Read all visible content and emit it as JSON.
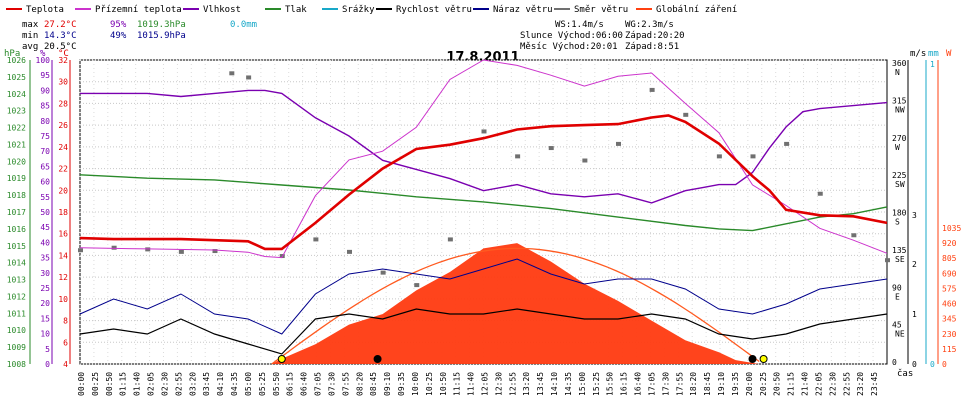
{
  "chart_data": {
    "type": "line",
    "title": "17.8.2011",
    "legend": [
      {
        "label": "Teplota",
        "color": "#e00000"
      },
      {
        "label": "Přízemní teplota",
        "color": "#cc33cc"
      },
      {
        "label": "Vlhkost",
        "color": "#7a00b0"
      },
      {
        "label": "Tlak",
        "color": "#2a8a2a"
      },
      {
        "label": "Srážky",
        "color": "#18a8c8"
      },
      {
        "label": "Rychlost větru",
        "color": "#000000"
      },
      {
        "label": "Náraz větru",
        "color": "#00008b"
      },
      {
        "label": "Směr větru",
        "color": "#707070"
      },
      {
        "label": "Globální záření",
        "color": "#ff4010"
      }
    ],
    "stats": {
      "max_label": "max",
      "max_temp": "27.2°C",
      "max_hum": "95%",
      "max_press": "1019.3hPa",
      "max_rain": "0.0mm",
      "min_label": "min",
      "min_temp": "14.3°C",
      "min_hum": "49%",
      "min_press": "1015.9hPa",
      "avg_label": "avg",
      "avg_temp": "20.5°C"
    },
    "wind_info": {
      "ws": "WS:1.4m/s",
      "wg": "WG:2.3m/s"
    },
    "sun_info": {
      "sun": "Slunce Východ:06:00",
      "sun_set": "Západ:20:20"
    },
    "moon_info": {
      "moon": "Měsíc Východ:20:01",
      "moon_set": "Západ:8:51"
    },
    "axes": {
      "hpa_label": "hPa",
      "pct_label": "%",
      "degc_label": "°C",
      "ms_label": "m/s",
      "mm_label": "mm",
      "w_label": "W",
      "time_label": "čas",
      "hpa_ticks": [
        "1026",
        "1025",
        "1024",
        "1023",
        "1022",
        "1021",
        "1020",
        "1019",
        "1018",
        "1017",
        "1016",
        "1015",
        "1014",
        "1013",
        "1012",
        "1011",
        "1010",
        "1009",
        "1008"
      ],
      "pct_ticks": [
        "100",
        "95",
        "90",
        "85",
        "80",
        "75",
        "70",
        "65",
        "60",
        "55",
        "50",
        "45",
        "40",
        "35",
        "30",
        "25",
        "20",
        "15",
        "10",
        "5",
        "0"
      ],
      "degc_ticks": [
        "32",
        "30",
        "28",
        "26",
        "24",
        "22",
        "20",
        "18",
        "16",
        "14",
        "12",
        "10",
        "8",
        "6",
        "4"
      ],
      "dir_ticks": [
        {
          "deg": "360",
          "dir": "N"
        },
        {
          "deg": "315",
          "dir": "NW"
        },
        {
          "deg": "270",
          "dir": "W"
        },
        {
          "deg": "225",
          "dir": "SW"
        },
        {
          "deg": "180",
          "dir": "S"
        },
        {
          "deg": "135",
          "dir": "SE"
        },
        {
          "deg": "90",
          "dir": "E"
        },
        {
          "deg": "45",
          "dir": "NE"
        },
        {
          "deg": "0",
          "dir": ""
        }
      ],
      "ms_ticks": [
        "3",
        "2",
        "1",
        "0"
      ],
      "mm_ticks": [
        "1",
        "0"
      ],
      "w_ticks": [
        "1035",
        "920",
        "805",
        "690",
        "575",
        "460",
        "345",
        "230",
        "115",
        "0"
      ],
      "time_ticks": [
        "00:00",
        "00:25",
        "00:50",
        "01:15",
        "01:40",
        "02:05",
        "02:30",
        "02:55",
        "03:20",
        "03:45",
        "04:10",
        "04:35",
        "05:00",
        "05:25",
        "05:50",
        "06:15",
        "06:40",
        "07:05",
        "07:30",
        "07:55",
        "08:20",
        "08:45",
        "09:10",
        "09:35",
        "10:00",
        "10:25",
        "10:50",
        "11:15",
        "11:40",
        "12:05",
        "12:30",
        "12:55",
        "13:20",
        "13:45",
        "14:10",
        "14:35",
        "15:00",
        "15:25",
        "15:50",
        "16:15",
        "16:40",
        "17:05",
        "17:30",
        "17:55",
        "18:20",
        "18:45",
        "19:10",
        "19:35",
        "20:00",
        "20:25",
        "20:50",
        "21:15",
        "21:40",
        "22:05",
        "22:30",
        "22:55",
        "23:20",
        "23:45"
      ]
    },
    "series": [
      {
        "name": "Teplota",
        "unit": "°C",
        "hours": [
          0,
          1,
          2,
          3,
          4,
          5,
          5.5,
          6,
          7,
          8,
          9,
          10,
          11,
          12,
          13,
          14,
          15,
          16,
          17,
          17.5,
          18,
          19,
          20,
          20.5,
          21,
          22,
          23,
          24
        ],
        "values": [
          15.6,
          15.5,
          15.5,
          15.5,
          15.4,
          15.3,
          14.6,
          14.6,
          17.0,
          19.6,
          22.0,
          23.8,
          24.2,
          24.8,
          25.6,
          25.9,
          26.0,
          26.1,
          26.7,
          26.9,
          26.3,
          24.3,
          21.3,
          20.0,
          18.2,
          17.7,
          17.6,
          17.0
        ]
      },
      {
        "name": "Přízemní teplota",
        "unit": "°C",
        "hours": [
          0,
          2,
          4,
          5,
          5.5,
          6,
          7,
          8,
          9,
          10,
          11,
          12,
          13,
          14,
          15,
          16,
          17,
          18,
          19,
          20,
          21,
          22,
          23,
          24
        ],
        "values": [
          14.7,
          14.6,
          14.5,
          14.3,
          13.9,
          13.8,
          19.5,
          22.8,
          23.6,
          25.8,
          30.2,
          32.0,
          31.5,
          30.6,
          29.6,
          30.5,
          30.8,
          28.0,
          25.3,
          20.5,
          18.6,
          16.5,
          15.4,
          14.2
        ]
      },
      {
        "name": "Vlhkost",
        "unit": "%",
        "hours": [
          0,
          1,
          2,
          3,
          4,
          5,
          5.5,
          6,
          7,
          8,
          9,
          10,
          11,
          12,
          13,
          14,
          15,
          16,
          17,
          18,
          18.5,
          19,
          19.5,
          20,
          20.5,
          21,
          21.5,
          22,
          23,
          24
        ],
        "values": [
          89,
          89,
          89,
          88,
          89,
          90,
          90,
          89,
          81,
          75,
          67,
          64,
          61,
          57,
          59,
          56,
          55,
          56,
          53,
          57,
          58,
          59,
          59,
          63,
          71,
          78,
          83,
          84,
          85,
          86
        ]
      },
      {
        "name": "Tlak",
        "unit": "hPa",
        "hours": [
          0,
          2,
          4,
          6,
          8,
          10,
          12,
          14,
          16,
          18,
          19,
          20,
          21,
          22,
          23,
          24
        ],
        "values": [
          1019.2,
          1019.0,
          1018.9,
          1018.6,
          1018.3,
          1017.9,
          1017.6,
          1017.2,
          1016.7,
          1016.2,
          1016.0,
          1015.9,
          1016.3,
          1016.7,
          1016.9,
          1017.3
        ]
      },
      {
        "name": "Rychlost větru",
        "unit": "m/s",
        "hours": [
          0,
          1,
          2,
          3,
          4,
          5,
          6,
          7,
          8,
          9,
          10,
          11,
          12,
          13,
          14,
          15,
          16,
          17,
          18,
          19,
          20,
          21,
          22,
          23,
          24
        ],
        "values": [
          0.6,
          0.7,
          0.6,
          0.9,
          0.6,
          0.4,
          0.2,
          0.9,
          1.0,
          0.9,
          1.1,
          1.0,
          1.0,
          1.1,
          1.0,
          0.9,
          0.9,
          1.0,
          0.9,
          0.6,
          0.5,
          0.6,
          0.8,
          0.9,
          1.0
        ]
      },
      {
        "name": "Náraz větru",
        "unit": "m/s",
        "hours": [
          0,
          1,
          2,
          3,
          4,
          5,
          6,
          7,
          8,
          9,
          10,
          11,
          12,
          13,
          14,
          15,
          16,
          17,
          18,
          19,
          20,
          21,
          22,
          23,
          24
        ],
        "values": [
          1.0,
          1.3,
          1.1,
          1.4,
          1.0,
          0.9,
          0.6,
          1.4,
          1.8,
          1.9,
          1.8,
          1.7,
          1.9,
          2.1,
          1.8,
          1.6,
          1.7,
          1.7,
          1.5,
          1.1,
          1.0,
          1.2,
          1.5,
          1.6,
          1.7
        ]
      },
      {
        "name": "Směr větru",
        "unit": "°",
        "hours": [
          0,
          1,
          2,
          3,
          4,
          4.5,
          5,
          6,
          7,
          8,
          9,
          10,
          11,
          12,
          13,
          14,
          15,
          16,
          17,
          18,
          19,
          20,
          21,
          22,
          23,
          24
        ],
        "values": [
          137,
          140,
          138,
          135,
          136,
          350,
          345,
          130,
          150,
          135,
          110,
          95,
          150,
          280,
          250,
          260,
          245,
          265,
          330,
          300,
          250,
          250,
          265,
          205,
          155,
          125
        ]
      },
      {
        "name": "Globální záření",
        "unit": "W",
        "hours": [
          5.7,
          6,
          7,
          8,
          9,
          10,
          11,
          12,
          13,
          14,
          15,
          16,
          17,
          18,
          19,
          19.5,
          20.2
        ],
        "values": [
          0,
          40,
          150,
          300,
          380,
          560,
          700,
          880,
          920,
          780,
          610,
          480,
          330,
          180,
          90,
          30,
          0
        ]
      }
    ]
  }
}
